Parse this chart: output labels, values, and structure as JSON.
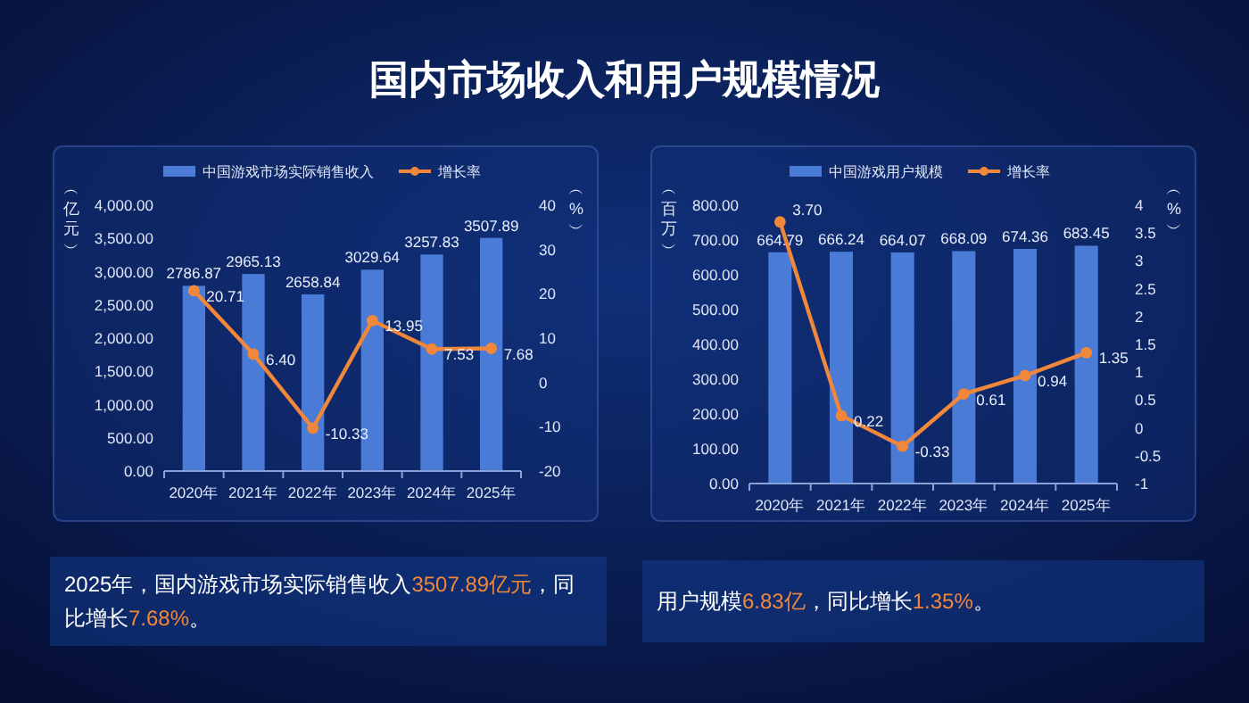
{
  "chart_data": [
    {
      "type": "bar",
      "title": "国内市场收入和用户规模情况",
      "categories": [
        "2020年",
        "2021年",
        "2022年",
        "2023年",
        "2024年",
        "2025年"
      ],
      "ylabel": "︵亿元︶",
      "y2label": "︵%︶",
      "series": [
        {
          "name": "中国游戏市场实际销售收入",
          "color": "#4a7bd6",
          "values": [
            2786.87,
            2965.13,
            2658.84,
            3029.64,
            3257.83,
            3507.89
          ],
          "value_labels": [
            "2786.87",
            "2965.13",
            "2658.84",
            "3029.64",
            "3257.83",
            "3507.89"
          ]
        },
        {
          "name": "增长率",
          "type": "line",
          "axis": "y2",
          "color": "#f0873a",
          "values": [
            20.71,
            6.4,
            -10.33,
            13.95,
            7.53,
            7.68
          ],
          "value_labels": [
            "20.71",
            "6.40",
            "-10.33",
            "13.95",
            "7.53",
            "7.68"
          ]
        }
      ],
      "ylim": [
        0,
        4000
      ],
      "yticks": [
        {
          "value": 0,
          "label": "0.00"
        },
        {
          "value": 500,
          "label": "500.00"
        },
        {
          "value": 1000,
          "label": "1,000.00"
        },
        {
          "value": 1500,
          "label": "1,500.00"
        },
        {
          "value": 2000,
          "label": "2,000.00"
        },
        {
          "value": 2500,
          "label": "2,500.00"
        },
        {
          "value": 3000,
          "label": "3,000.00"
        },
        {
          "value": 3500,
          "label": "3,500.00"
        },
        {
          "value": 4000,
          "label": "4,000.00"
        }
      ],
      "y2lim": [
        -20,
        40
      ],
      "y2ticks": [
        -20,
        -10,
        0,
        10,
        20,
        30,
        40
      ],
      "legend": "top",
      "grid": false,
      "marker": "circle",
      "annotations": [
        "2025年，国内游戏市场实际销售收入3507.89亿元，同比增长7.68%。"
      ]
    },
    {
      "type": "bar",
      "categories": [
        "2020年",
        "2021年",
        "2022年",
        "2023年",
        "2024年",
        "2025年"
      ],
      "ylabel": "︵百万︶",
      "y2label": "︵%︶",
      "series": [
        {
          "name": "中国游戏用户规模",
          "color": "#4a7bd6",
          "values": [
            664.79,
            666.24,
            664.07,
            668.09,
            674.36,
            683.45
          ],
          "value_labels": [
            "664.79",
            "666.24",
            "664.07",
            "668.09",
            "674.36",
            "683.45"
          ]
        },
        {
          "name": "增长率",
          "type": "line",
          "axis": "y2",
          "color": "#f0873a",
          "values": [
            3.7,
            0.22,
            -0.33,
            0.61,
            0.94,
            1.35
          ],
          "value_labels": [
            "3.70",
            "0.22",
            "-0.33",
            "0.61",
            "0.94",
            "1.35"
          ]
        }
      ],
      "ylim": [
        0,
        800
      ],
      "yticks": [
        {
          "value": 0,
          "label": "0.00"
        },
        {
          "value": 100,
          "label": "100.00"
        },
        {
          "value": 200,
          "label": "200.00"
        },
        {
          "value": 300,
          "label": "300.00"
        },
        {
          "value": 400,
          "label": "400.00"
        },
        {
          "value": 500,
          "label": "500.00"
        },
        {
          "value": 600,
          "label": "600.00"
        },
        {
          "value": 700,
          "label": "700.00"
        },
        {
          "value": 800,
          "label": "800.00"
        }
      ],
      "y2lim": [
        -1,
        4
      ],
      "y2ticks": [
        -1,
        -0.5,
        0,
        0.5,
        1,
        1.5,
        2,
        2.5,
        3,
        3.5,
        4
      ],
      "legend": "top",
      "grid": false,
      "marker": "circle",
      "annotations": [
        "用户规模6.83亿，同比增长1.35%。"
      ]
    }
  ]
}
